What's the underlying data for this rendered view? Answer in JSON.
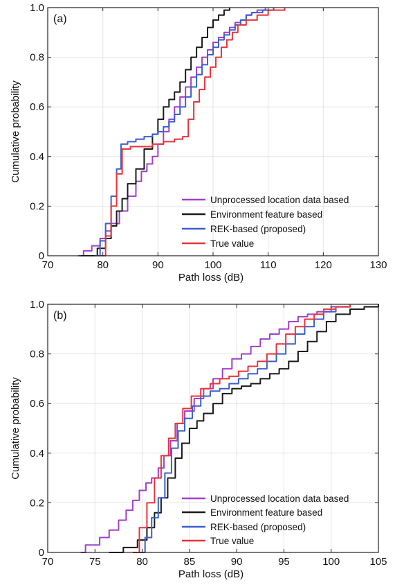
{
  "chart_data": [
    {
      "type": "line",
      "panel_label": "(a)",
      "xlabel": "Path loss (dB)",
      "ylabel": "Cumulative probability",
      "xlim": [
        70,
        130
      ],
      "ylim": [
        0,
        1
      ],
      "xticks": [
        "70",
        "80",
        "90",
        "100",
        "110",
        "120",
        "130"
      ],
      "yticks": [
        "0",
        "0.2",
        "0.4",
        "0.6",
        "0.8",
        "1.0"
      ],
      "grid": true,
      "legend_position": "bottom-right",
      "series": [
        {
          "name": "Unprocessed location data based",
          "color": "#a040c8",
          "x": [
            75.5,
            76.5,
            78,
            79.5,
            80.5,
            81.5,
            83,
            84.5,
            86,
            87,
            88,
            89,
            90,
            91,
            92,
            93,
            94,
            95,
            96,
            97,
            98,
            99,
            100,
            101,
            102,
            103,
            104,
            105,
            106,
            107,
            108,
            109.5
          ],
          "y": [
            0,
            0.02,
            0.04,
            0.07,
            0.1,
            0.13,
            0.18,
            0.24,
            0.3,
            0.34,
            0.37,
            0.4,
            0.45,
            0.5,
            0.55,
            0.6,
            0.64,
            0.68,
            0.72,
            0.76,
            0.8,
            0.83,
            0.86,
            0.88,
            0.9,
            0.92,
            0.94,
            0.95,
            0.97,
            0.98,
            0.99,
            1.0
          ]
        },
        {
          "name": "Environment feature based",
          "color": "#1a1a1a",
          "x": [
            76,
            79,
            80.5,
            81.5,
            82.5,
            83.5,
            84.5,
            86,
            87.5,
            89,
            90,
            91,
            92,
            93,
            94,
            95,
            96,
            97,
            98,
            99,
            100,
            101,
            102,
            103
          ],
          "y": [
            0,
            0.03,
            0.07,
            0.12,
            0.18,
            0.23,
            0.29,
            0.35,
            0.43,
            0.49,
            0.55,
            0.6,
            0.63,
            0.66,
            0.7,
            0.75,
            0.8,
            0.84,
            0.88,
            0.92,
            0.95,
            0.97,
            0.99,
            1.0
          ]
        },
        {
          "name": "REK-based (proposed)",
          "color": "#3a5fcd",
          "x": [
            78.5,
            79.5,
            80.5,
            81.5,
            82.5,
            83.3,
            84.5,
            86,
            87.5,
            89,
            90,
            91,
            92,
            93,
            94,
            95,
            96,
            97,
            98,
            99,
            100,
            101,
            102,
            103,
            104,
            105,
            106,
            107,
            109,
            111
          ],
          "y": [
            0,
            0.06,
            0.13,
            0.24,
            0.35,
            0.45,
            0.46,
            0.47,
            0.48,
            0.49,
            0.5,
            0.52,
            0.54,
            0.57,
            0.6,
            0.64,
            0.68,
            0.73,
            0.77,
            0.81,
            0.84,
            0.87,
            0.89,
            0.91,
            0.93,
            0.95,
            0.97,
            0.98,
            0.99,
            1.0
          ]
        },
        {
          "name": "True value",
          "color": "#e8333a",
          "x": [
            79.5,
            80.5,
            81.5,
            82.5,
            83.5,
            85,
            87,
            89,
            91,
            93,
            94.5,
            95.5,
            96.5,
            97.5,
            98.5,
            99.5,
            100.5,
            101.5,
            102.5,
            103.5,
            104.5,
            106,
            108,
            110,
            113
          ],
          "y": [
            0,
            0.08,
            0.2,
            0.33,
            0.43,
            0.44,
            0.44,
            0.45,
            0.46,
            0.47,
            0.48,
            0.55,
            0.62,
            0.67,
            0.72,
            0.76,
            0.8,
            0.84,
            0.87,
            0.9,
            0.93,
            0.95,
            0.97,
            0.99,
            1.0
          ]
        }
      ]
    },
    {
      "type": "line",
      "panel_label": "(b)",
      "xlabel": "Path loss (dB)",
      "ylabel": "Cumulative probability",
      "xlim": [
        70,
        105
      ],
      "ylim": [
        0,
        1
      ],
      "xticks": [
        "70",
        "75",
        "80",
        "85",
        "90",
        "95",
        "100",
        "105"
      ],
      "yticks": [
        "0",
        "0.2",
        "0.4",
        "0.6",
        "0.8",
        "1.0"
      ],
      "grid": true,
      "legend_position": "bottom-right",
      "series": [
        {
          "name": "Unprocessed location data based",
          "color": "#a040c8",
          "x": [
            73.5,
            74,
            75.5,
            76.5,
            77.5,
            78.3,
            79,
            79.7,
            80.4,
            81,
            81.7,
            82.3,
            83,
            83.7,
            84.5,
            85.5,
            86.5,
            87.5,
            88.5,
            89.5,
            90.5,
            91.5,
            92.5,
            93.5,
            94.5,
            95.5,
            96.5,
            97.5,
            98.5,
            100,
            102
          ],
          "y": [
            0,
            0.03,
            0.06,
            0.09,
            0.13,
            0.17,
            0.21,
            0.25,
            0.28,
            0.3,
            0.34,
            0.39,
            0.45,
            0.52,
            0.57,
            0.62,
            0.66,
            0.7,
            0.74,
            0.78,
            0.8,
            0.83,
            0.86,
            0.88,
            0.9,
            0.93,
            0.95,
            0.96,
            0.97,
            0.99,
            1.0
          ]
        },
        {
          "name": "Environment feature based",
          "color": "#1a1a1a",
          "x": [
            76.5,
            78,
            79.5,
            80.5,
            81.3,
            82,
            82.7,
            83.5,
            84.2,
            85,
            85.8,
            86.5,
            87.5,
            88.5,
            89.5,
            90.5,
            91.5,
            92.5,
            93.5,
            94.5,
            95.5,
            96.5,
            97.5,
            98.5,
            99.5,
            100.5,
            102,
            103.5,
            105
          ],
          "y": [
            0,
            0.02,
            0.05,
            0.1,
            0.16,
            0.22,
            0.3,
            0.38,
            0.44,
            0.5,
            0.53,
            0.56,
            0.6,
            0.64,
            0.66,
            0.67,
            0.68,
            0.7,
            0.72,
            0.74,
            0.77,
            0.81,
            0.85,
            0.89,
            0.93,
            0.96,
            0.98,
            0.99,
            1.0
          ]
        },
        {
          "name": "REK-based (proposed)",
          "color": "#3a5fcd",
          "x": [
            79.5,
            80.3,
            81,
            81.7,
            82.4,
            83.1,
            83.8,
            84.5,
            85.3,
            86.2,
            87.2,
            88.2,
            89.2,
            90.2,
            91.2,
            92.2,
            93.2,
            94.2,
            95.2,
            96.2,
            97.2,
            98.2,
            99.2,
            100.5,
            102
          ],
          "y": [
            0,
            0.06,
            0.14,
            0.22,
            0.32,
            0.42,
            0.49,
            0.54,
            0.59,
            0.63,
            0.65,
            0.66,
            0.68,
            0.7,
            0.72,
            0.74,
            0.77,
            0.8,
            0.84,
            0.88,
            0.91,
            0.94,
            0.97,
            0.99,
            1.0
          ]
        },
        {
          "name": "True value",
          "color": "#e8333a",
          "x": [
            79,
            79.7,
            80.5,
            81.3,
            82,
            82.8,
            83.5,
            84.3,
            85.2,
            86.2,
            87.2,
            88.2,
            89.2,
            90.2,
            91.2,
            92.2,
            93.2,
            94.2,
            95.2,
            96.2,
            97.2,
            98.2,
            99.2,
            100.5,
            102
          ],
          "y": [
            0,
            0.1,
            0.2,
            0.3,
            0.39,
            0.46,
            0.52,
            0.58,
            0.63,
            0.66,
            0.68,
            0.7,
            0.71,
            0.73,
            0.75,
            0.77,
            0.8,
            0.84,
            0.88,
            0.91,
            0.94,
            0.96,
            0.98,
            0.99,
            1.0
          ]
        }
      ]
    }
  ]
}
